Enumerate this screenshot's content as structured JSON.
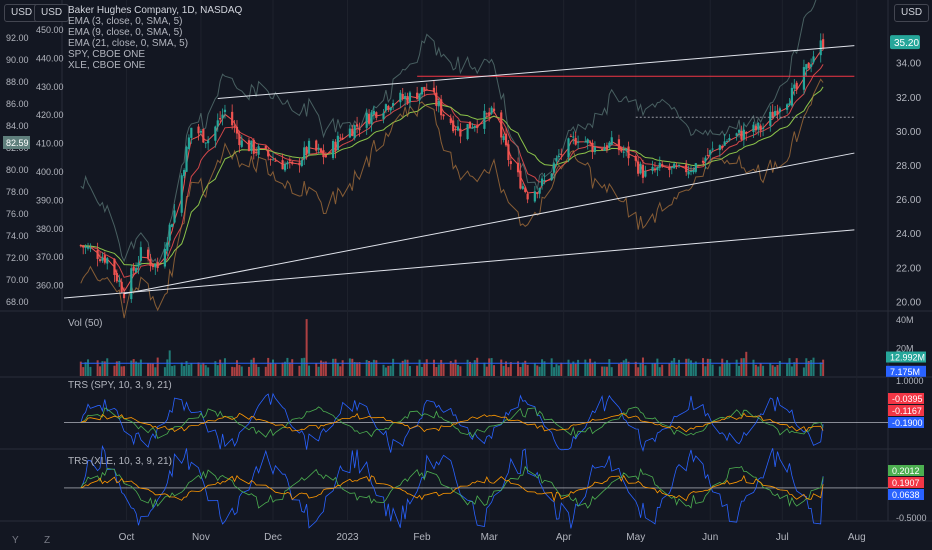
{
  "toolbar": {
    "left_currency": "USD",
    "left_currency2": "USD",
    "right_currency": "USD"
  },
  "legend": {
    "title": "Baker Hughes Company, 1D, NASDAQ",
    "items": [
      "EMA (3, close, 0, SMA, 5)",
      "EMA (9, close, 0, SMA, 5)",
      "EMA (21, close, 0, SMA, 5)",
      "SPY, CBOE ONE",
      "XLE, CBOE ONE"
    ]
  },
  "panes": {
    "volume": {
      "label": "Vol (50)",
      "ticks": [
        "40M",
        "20M"
      ],
      "badges": [
        "12.992M",
        "7.175M"
      ]
    },
    "trs_spy": {
      "label": "TRS (SPY, 10, 3, 9, 21)",
      "ticks": [
        "1.0000"
      ],
      "badges": [
        "-0.0395",
        "-0.1167",
        "-0.1900"
      ]
    },
    "trs_xle": {
      "label": "TRS (XLE, 10, 3, 9, 21)",
      "ticks": [
        "-0.5000"
      ],
      "badges": [
        "0.2012",
        "0.1907",
        "0.0638"
      ]
    }
  },
  "bottom_tools": {
    "log": "Y",
    "zoom": "Z"
  },
  "colors": {
    "up": "#26a69a",
    "down": "#ef5350",
    "bg": "#131722",
    "blue": "#2962ff",
    "green": "#4caf50",
    "orange": "#ff9800"
  },
  "chart_data": [
    {
      "type": "candlestick",
      "title": "Baker Hughes Company, 1D, NASDAQ",
      "x_ticks": [
        "Oct",
        "Nov",
        "Dec",
        "2023",
        "Feb",
        "Mar",
        "Apr",
        "May",
        "Jun",
        "Jul",
        "Aug"
      ],
      "right_axis": {
        "ticks": [
          "34.00",
          "32.00",
          "30.00",
          "28.00",
          "26.00",
          "24.00",
          "22.00",
          "20.00"
        ],
        "ylim": [
          19.5,
          36.5
        ],
        "last_price": "35.20"
      },
      "left_axis_spy": {
        "ticks": [
          "450.00",
          "440.00",
          "430.00",
          "420.00",
          "410.00",
          "400.00",
          "390.00",
          "380.00",
          "370.00",
          "360.00"
        ],
        "current": "82.59"
      },
      "left_axis_xle": {
        "ticks": [
          "92.00",
          "90.00",
          "88.00",
          "86.00",
          "84.00",
          "82.00",
          "80.00",
          "78.00",
          "76.00",
          "74.00",
          "72.00",
          "70.00",
          "68.00"
        ]
      },
      "price_anchors": [
        [
          "2022-09-16",
          23.0
        ],
        [
          "2022-09-23",
          22.5
        ],
        [
          "2022-09-30",
          20.6
        ],
        [
          "2022-10-07",
          22.8
        ],
        [
          "2022-10-14",
          22.0
        ],
        [
          "2022-10-21",
          25.3
        ],
        [
          "2022-10-28",
          30.2
        ],
        [
          "2022-11-04",
          29.5
        ],
        [
          "2022-11-11",
          31.2
        ],
        [
          "2022-11-18",
          29.3
        ],
        [
          "2022-11-25",
          28.8
        ],
        [
          "2022-12-02",
          28.3
        ],
        [
          "2022-12-09",
          27.8
        ],
        [
          "2022-12-16",
          29.0
        ],
        [
          "2022-12-23",
          28.5
        ],
        [
          "2022-12-30",
          29.8
        ],
        [
          "2023-01-06",
          30.4
        ],
        [
          "2023-01-13",
          31.2
        ],
        [
          "2023-01-20",
          31.8
        ],
        [
          "2023-01-27",
          32.0
        ],
        [
          "2023-02-03",
          32.5
        ],
        [
          "2023-02-10",
          31.0
        ],
        [
          "2023-02-17",
          30.0
        ],
        [
          "2023-02-24",
          30.6
        ],
        [
          "2023-03-03",
          31.0
        ],
        [
          "2023-03-10",
          28.0
        ],
        [
          "2023-03-17",
          26.3
        ],
        [
          "2023-03-24",
          27.0
        ],
        [
          "2023-03-31",
          28.7
        ],
        [
          "2023-04-07",
          29.7
        ],
        [
          "2023-04-14",
          29.0
        ],
        [
          "2023-04-21",
          29.2
        ],
        [
          "2023-04-28",
          28.6
        ],
        [
          "2023-05-05",
          27.4
        ],
        [
          "2023-05-12",
          27.8
        ],
        [
          "2023-05-19",
          27.6
        ],
        [
          "2023-05-26",
          28.0
        ],
        [
          "2023-06-02",
          28.8
        ],
        [
          "2023-06-09",
          29.6
        ],
        [
          "2023-06-16",
          29.9
        ],
        [
          "2023-06-23",
          30.2
        ],
        [
          "2023-06-30",
          31.6
        ],
        [
          "2023-07-07",
          32.4
        ],
        [
          "2023-07-14",
          34.5
        ],
        [
          "2023-07-18",
          35.2
        ]
      ],
      "reference_lines": [
        {
          "name": "horizontal-red",
          "start": [
            "2023-01-30",
            33.2
          ],
          "end": [
            "2023-07-31",
            33.2
          ]
        },
        {
          "name": "horizontal-dotted",
          "start": [
            "2023-05-01",
            30.8
          ],
          "end": [
            "2023-07-31",
            30.8
          ]
        },
        {
          "name": "upper-channel",
          "start": [
            "2022-11-08",
            31.9
          ],
          "end": [
            "2023-07-31",
            35.0
          ]
        },
        {
          "name": "lower-channel",
          "start": [
            "2022-09-30",
            20.45
          ],
          "end": [
            "2023-07-31",
            28.7
          ]
        },
        {
          "name": "base-line",
          "start": [
            "2022-09-05",
            20.2
          ],
          "end": [
            "2023-07-31",
            24.2
          ]
        }
      ]
    },
    {
      "type": "bar",
      "title": "Vol (50)",
      "ylim": [
        0,
        45
      ],
      "unit": "M",
      "last_values": [
        12.992,
        7.175
      ]
    },
    {
      "type": "line",
      "title": "TRS (SPY, 10, 3, 9, 21)",
      "ylim": [
        -0.6,
        1.05
      ],
      "series": [
        {
          "last": -0.0395
        },
        {
          "last": -0.1167
        },
        {
          "last": -0.19
        }
      ]
    },
    {
      "type": "line",
      "title": "TRS (XLE, 10, 3, 9, 21)",
      "ylim": [
        -0.55,
        0.65
      ],
      "series": [
        {
          "last": 0.2012
        },
        {
          "last": 0.1907
        },
        {
          "last": 0.0638
        }
      ]
    }
  ]
}
